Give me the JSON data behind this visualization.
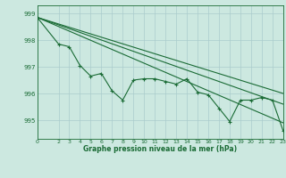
{
  "background_color": "#cce8e0",
  "grid_color": "#aacccc",
  "line_color": "#1a6b35",
  "text_color": "#1a6b35",
  "title": "Graphe pression niveau de la mer (hPa)",
  "xlim": [
    0,
    23
  ],
  "ylim": [
    994.3,
    999.3
  ],
  "yticks": [
    995,
    996,
    997,
    998,
    999
  ],
  "xticks": [
    0,
    2,
    3,
    4,
    5,
    6,
    7,
    8,
    9,
    10,
    11,
    12,
    13,
    14,
    15,
    16,
    17,
    18,
    19,
    20,
    21,
    22,
    23
  ],
  "series1_x": [
    0,
    2,
    3,
    4,
    5,
    6,
    7,
    8,
    9,
    10,
    11,
    12,
    13,
    14,
    15,
    16,
    17,
    18,
    19,
    20,
    21,
    22,
    23
  ],
  "series1_y": [
    998.85,
    997.85,
    997.75,
    997.05,
    996.65,
    996.75,
    996.1,
    995.75,
    996.5,
    996.55,
    996.55,
    996.45,
    996.35,
    996.55,
    996.05,
    995.95,
    995.45,
    994.95,
    995.75,
    995.75,
    995.85,
    995.75,
    994.6
  ],
  "trend1_x": [
    0,
    23
  ],
  "trend1_y": [
    998.85,
    995.6
  ],
  "trend2_x": [
    0,
    23
  ],
  "trend2_y": [
    998.85,
    996.0
  ],
  "trend3_x": [
    0,
    23
  ],
  "trend3_y": [
    998.85,
    994.9
  ]
}
